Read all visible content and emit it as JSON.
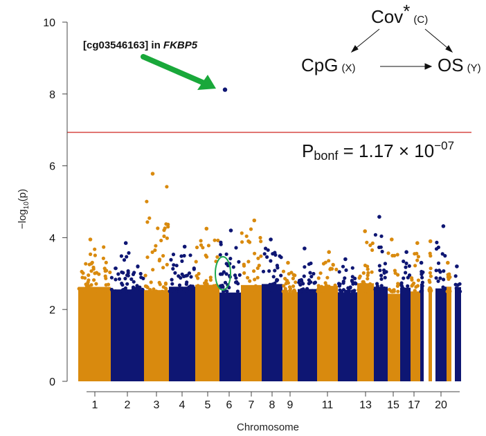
{
  "chart_data": {
    "type": "scatter",
    "subtype": "manhattan",
    "xlabel": "Chromosome",
    "ylabel_prefix": "−log",
    "ylabel_sub": "10",
    "ylabel_suffix": "(p)",
    "ylim": [
      0,
      10
    ],
    "yticks": [
      "0",
      "2",
      "4",
      "6",
      "8",
      "10"
    ],
    "xtick_labels": [
      "1",
      "2",
      "3",
      "4",
      "5",
      "6",
      "7",
      "8",
      "9",
      "11",
      "13",
      "15",
      "17",
      "20"
    ],
    "chromosomes": [
      "1",
      "2",
      "3",
      "4",
      "5",
      "6",
      "7",
      "8",
      "9",
      "10",
      "11",
      "12",
      "13",
      "14",
      "15",
      "16",
      "17",
      "18",
      "19",
      "20",
      "21",
      "22"
    ],
    "colors": {
      "odd": "#D98A0E",
      "even": "#0E1673",
      "threshold": "#D9534F",
      "arrow": "#19A83A",
      "circle": "#1EA850",
      "star": "#2BB5E8"
    },
    "threshold": 6.93,
    "chrom_peaks": [
      3.95,
      3.85,
      5.78,
      3.75,
      4.25,
      4.2,
      4.48,
      3.95,
      3.3,
      3.7,
      3.6,
      3.4,
      4.18,
      4.58,
      3.95,
      3.6,
      3.85,
      3.3,
      3.9,
      4.32,
      3.3,
      3.2
    ],
    "top_hit": {
      "chromosome": "6",
      "y": 8.12
    },
    "annotation": {
      "probe": "[cg03546163] in ",
      "gene": "FKBP5"
    },
    "threshold_label": {
      "main": "P",
      "sub": "bonf",
      "eq": " = 1.17 × 10",
      "exp": "−07"
    },
    "dag": {
      "cov": "Cov",
      "cov_star": "*",
      "cov_tag": "(C)",
      "cpg": "CpG",
      "cpg_tag": "(X)",
      "os": "OS",
      "os_tag": "(Y)"
    }
  }
}
